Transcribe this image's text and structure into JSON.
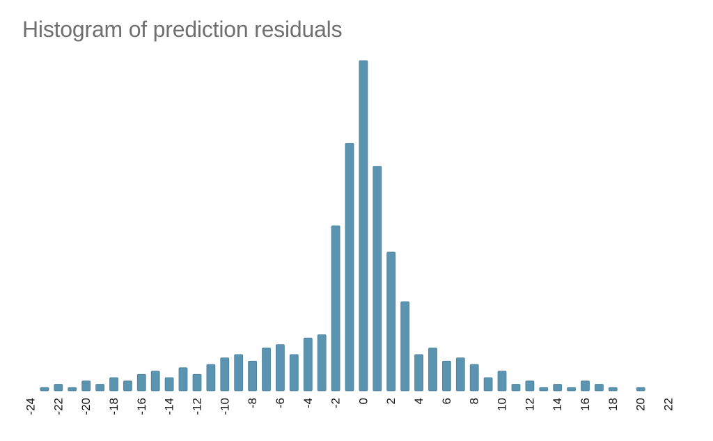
{
  "chart_data": {
    "type": "bar",
    "title": "Histogram of prediction residuals",
    "xlabel": "",
    "ylabel": "",
    "bar_color": "#5a94b0",
    "bar_stroke": "#4a7f99",
    "grid": false,
    "xlim": [
      -24,
      22
    ],
    "xticks": [
      -24,
      -22,
      -20,
      -18,
      -16,
      -14,
      -12,
      -10,
      -8,
      -6,
      -4,
      -2,
      0,
      2,
      4,
      6,
      8,
      10,
      12,
      14,
      16,
      18,
      20,
      22
    ],
    "x": [
      -23,
      -22,
      -21,
      -20,
      -19,
      -18,
      -17,
      -16,
      -15,
      -14,
      -13,
      -12,
      -11,
      -10,
      -9,
      -8,
      -7,
      -6,
      -5,
      -4,
      -3,
      -2,
      -1,
      0,
      1,
      2,
      3,
      4,
      5,
      6,
      7,
      8,
      9,
      10,
      11,
      12,
      13,
      14,
      15,
      16,
      17,
      18,
      19,
      20
    ],
    "values": [
      1,
      2,
      1,
      3,
      2,
      4,
      3,
      5,
      6,
      4,
      7,
      5,
      8,
      10,
      11,
      9,
      13,
      14,
      11,
      16,
      17,
      50,
      75,
      100,
      68,
      42,
      27,
      11,
      13,
      9,
      10,
      8,
      4,
      6,
      2,
      3,
      1,
      2,
      1,
      3,
      2,
      1,
      0,
      1
    ],
    "ylim": [
      0,
      100
    ]
  }
}
